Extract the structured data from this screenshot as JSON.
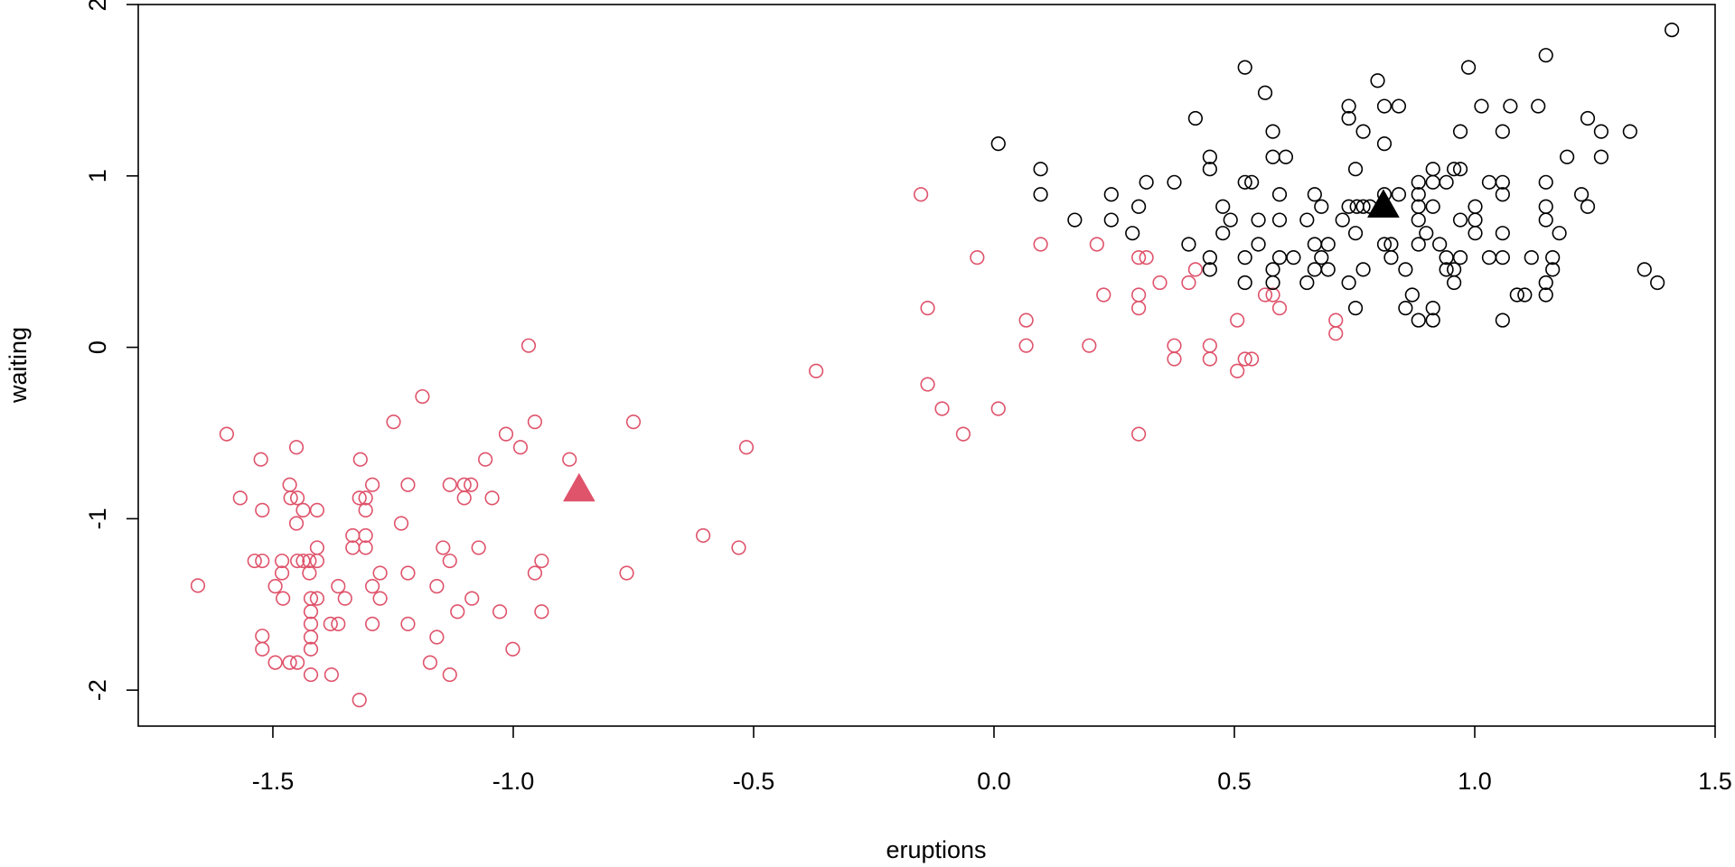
{
  "chart_data": {
    "type": "scatter",
    "xlabel": "eruptions",
    "ylabel": "waiting",
    "xlim": [
      -1.78,
      1.5
    ],
    "ylim": [
      -2.21,
      2.0
    ],
    "xticks": [
      -1.5,
      {
        "value": -1.0,
        "label": "-1.0"
      },
      -0.5,
      {
        "value": 0.0,
        "label": "0.0"
      },
      0.5,
      {
        "value": 1.0,
        "label": "1.0"
      },
      1.5
    ],
    "yticks": [
      -2,
      -1,
      0,
      1,
      2
    ],
    "series": [
      {
        "color": "#DF536B",
        "marker": "circle-open",
        "x": [
          -1.656,
          -1.596,
          -1.568,
          -1.538,
          -1.522,
          -1.525,
          -1.522,
          -1.522,
          -1.522,
          -1.495,
          -1.495,
          -1.481,
          -1.481,
          -1.479,
          -1.465,
          -1.463,
          -1.465,
          -1.451,
          -1.451,
          -1.449,
          -1.449,
          -1.449,
          -1.437,
          -1.437,
          -1.424,
          -1.424,
          -1.421,
          -1.421,
          -1.421,
          -1.421,
          -1.421,
          -1.421,
          -1.408,
          -1.408,
          -1.408,
          -1.408,
          -1.38,
          -1.378,
          -1.364,
          -1.364,
          -1.35,
          -1.334,
          -1.334,
          -1.318,
          -1.32,
          -1.32,
          -1.307,
          -1.307,
          -1.307,
          -1.307,
          -1.293,
          -1.293,
          -1.293,
          -1.277,
          -1.277,
          -1.249,
          -1.233,
          -1.219,
          -1.219,
          -1.219,
          -1.189,
          -1.173,
          -1.159,
          -1.159,
          -1.146,
          -1.132,
          -1.132,
          -1.132,
          -1.116,
          -1.102,
          -1.102,
          -1.088,
          -1.086,
          -1.072,
          -1.058,
          -1.044,
          -1.028,
          -1.015,
          -1.001,
          -0.985,
          -0.968,
          -0.955,
          -0.955,
          -0.941,
          -0.941,
          -0.883,
          -0.764,
          -0.75,
          -0.605,
          -0.531,
          -0.515,
          -0.37,
          -0.152,
          -0.138,
          -0.138,
          -0.108,
          -0.064,
          -0.035,
          0.009,
          0.067,
          0.067,
          0.097,
          0.198,
          0.214,
          0.228,
          0.301,
          0.301,
          0.301,
          0.301,
          0.317,
          0.345,
          0.375,
          0.375,
          0.405,
          0.419,
          0.449,
          0.449,
          0.506,
          0.506,
          0.522,
          0.536,
          0.564,
          0.58,
          0.594,
          0.711,
          0.711
        ],
        "y": [
          -1.39,
          -0.506,
          -0.879,
          -1.246,
          -1.246,
          -0.654,
          -0.95,
          -1.684,
          -1.761,
          -1.394,
          -1.839,
          -1.246,
          -1.317,
          -1.465,
          -0.802,
          -0.879,
          -1.839,
          -0.583,
          -1.027,
          -0.879,
          -1.839,
          -1.246,
          -0.95,
          -1.246,
          -1.246,
          -1.317,
          -1.465,
          -1.542,
          -1.614,
          -1.691,
          -1.761,
          -1.91,
          -0.95,
          -1.169,
          -1.246,
          -1.465,
          -1.614,
          -1.91,
          -1.394,
          -1.614,
          -1.465,
          -1.098,
          -1.169,
          -0.654,
          -0.879,
          -2.058,
          -0.879,
          -0.95,
          -1.098,
          -1.169,
          -0.802,
          -1.394,
          -1.614,
          -1.317,
          -1.465,
          -0.435,
          -1.027,
          -0.802,
          -1.317,
          -1.614,
          -0.287,
          -1.839,
          -1.394,
          -1.691,
          -1.169,
          -0.802,
          -1.246,
          -1.91,
          -1.542,
          -0.802,
          -0.879,
          -0.802,
          -1.465,
          -1.169,
          -0.654,
          -0.879,
          -1.542,
          -0.506,
          -1.761,
          -0.583,
          0.01,
          -0.435,
          -1.317,
          -1.246,
          -1.542,
          -0.654,
          -1.317,
          -0.435,
          -1.098,
          -1.169,
          -0.583,
          -0.138,
          0.892,
          0.229,
          -0.216,
          -0.358,
          -0.506,
          0.524,
          -0.358,
          0.158,
          0.01,
          0.601,
          0.01,
          0.601,
          0.306,
          0.524,
          0.306,
          0.229,
          -0.506,
          0.524,
          0.377,
          0.01,
          -0.068,
          0.377,
          0.454,
          0.01,
          -0.068,
          0.158,
          -0.138,
          -0.068,
          -0.068,
          0.306,
          0.306,
          0.229,
          0.158,
          0.081
        ]
      },
      {
        "color": "#000000",
        "marker": "circle-open",
        "x": [
          0.009,
          0.097,
          0.097,
          0.168,
          0.244,
          0.244,
          0.288,
          0.301,
          0.317,
          0.375,
          0.405,
          0.419,
          0.449,
          0.449,
          0.449,
          0.449,
          0.476,
          0.476,
          0.492,
          0.522,
          0.522,
          0.522,
          0.522,
          0.536,
          0.55,
          0.55,
          0.564,
          0.58,
          0.58,
          0.58,
          0.58,
          0.594,
          0.594,
          0.594,
          0.607,
          0.623,
          0.651,
          0.651,
          0.667,
          0.667,
          0.667,
          0.681,
          0.681,
          0.695,
          0.695,
          0.725,
          0.738,
          0.738,
          0.738,
          0.738,
          0.752,
          0.752,
          0.752,
          0.755,
          0.768,
          0.768,
          0.768,
          0.782,
          0.798,
          0.812,
          0.812,
          0.812,
          0.812,
          0.826,
          0.826,
          0.842,
          0.842,
          0.856,
          0.856,
          0.87,
          0.883,
          0.883,
          0.883,
          0.883,
          0.883,
          0.883,
          0.899,
          0.913,
          0.913,
          0.913,
          0.913,
          0.913,
          0.927,
          0.941,
          0.941,
          0.941,
          0.957,
          0.957,
          0.957,
          0.97,
          0.97,
          0.97,
          0.97,
          0.987,
          1.001,
          1.001,
          1.001,
          1.014,
          1.03,
          1.03,
          1.058,
          1.058,
          1.058,
          1.058,
          1.058,
          1.058,
          1.074,
          1.088,
          1.104,
          1.118,
          1.132,
          1.148,
          1.148,
          1.148,
          1.148,
          1.148,
          1.148,
          1.162,
          1.162,
          1.176,
          1.192,
          1.222,
          1.235,
          1.235,
          1.263,
          1.263,
          1.323,
          1.353,
          1.38,
          1.41
        ],
        "y": [
          1.188,
          1.04,
          0.892,
          0.743,
          0.892,
          0.743,
          0.666,
          0.821,
          0.963,
          0.963,
          0.601,
          1.336,
          1.111,
          1.04,
          0.524,
          0.454,
          0.821,
          0.666,
          0.743,
          1.633,
          0.963,
          0.524,
          0.377,
          0.963,
          0.601,
          0.743,
          1.485,
          1.259,
          1.111,
          0.454,
          0.377,
          0.892,
          0.743,
          0.524,
          1.111,
          0.524,
          0.743,
          0.377,
          0.892,
          0.601,
          0.454,
          0.821,
          0.524,
          0.601,
          0.454,
          0.743,
          1.407,
          1.336,
          0.821,
          0.377,
          1.04,
          0.666,
          0.229,
          0.821,
          1.259,
          0.821,
          0.454,
          0.821,
          1.556,
          1.407,
          1.188,
          0.601,
          0.892,
          0.601,
          0.524,
          1.407,
          0.892,
          0.454,
          0.229,
          0.306,
          0.963,
          0.892,
          0.821,
          0.743,
          0.601,
          0.158,
          0.666,
          1.04,
          0.963,
          0.821,
          0.229,
          0.158,
          0.601,
          0.963,
          0.524,
          0.454,
          1.04,
          0.454,
          0.377,
          1.259,
          1.04,
          0.743,
          0.524,
          1.633,
          0.821,
          0.743,
          0.666,
          1.407,
          0.963,
          0.524,
          1.259,
          0.963,
          0.892,
          0.666,
          0.524,
          0.158,
          1.407,
          0.306,
          0.306,
          0.524,
          1.407,
          1.704,
          0.963,
          0.821,
          0.743,
          0.377,
          0.306,
          0.524,
          0.454,
          0.666,
          1.111,
          0.892,
          1.336,
          0.821,
          1.259,
          1.111,
          1.259,
          0.454,
          0.377,
          1.852
        ]
      },
      {
        "color": "#DF536B",
        "marker": "triangle-filled",
        "x": [
          -0.863
        ],
        "y": [
          -0.828
        ]
      },
      {
        "color": "#000000",
        "marker": "triangle-filled",
        "x": [
          0.81
        ],
        "y": [
          0.828
        ]
      }
    ]
  }
}
